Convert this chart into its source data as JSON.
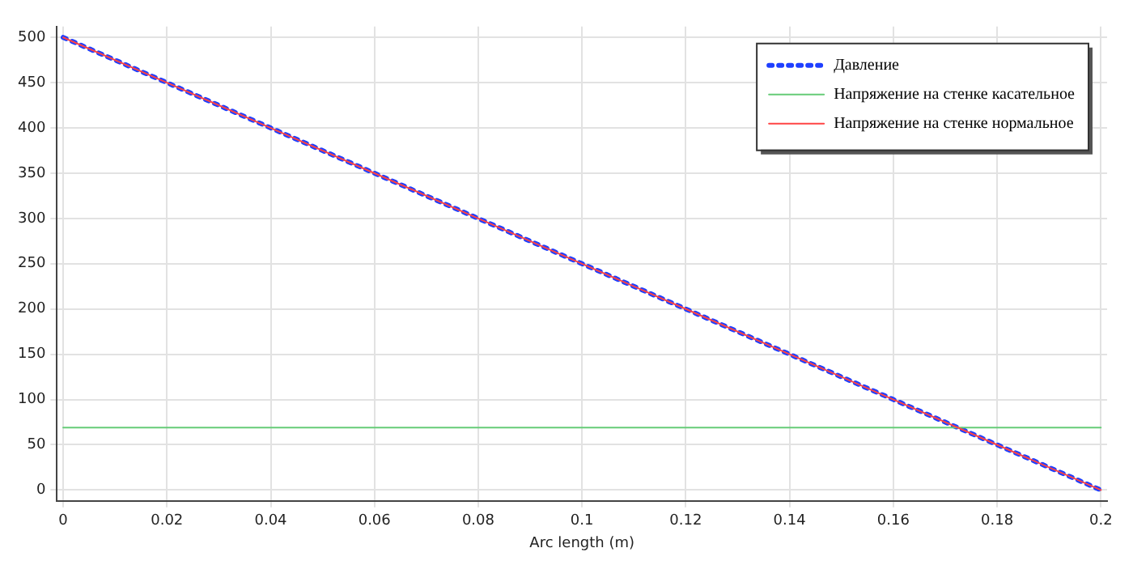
{
  "chart_data": {
    "type": "line",
    "xlabel": "Arc length (m)",
    "xlim": [
      -0.0012,
      0.2012
    ],
    "xticks": [
      0,
      0.02,
      0.04,
      0.06,
      0.08,
      0.1,
      0.12,
      0.14,
      0.16,
      0.18,
      0.2
    ],
    "ylim": [
      -12,
      512
    ],
    "yticks": [
      0,
      50,
      100,
      150,
      200,
      250,
      300,
      350,
      400,
      450,
      500
    ],
    "grid": true,
    "legend": "top right",
    "x": [
      0,
      0.02,
      0.04,
      0.06,
      0.08,
      0.1,
      0.12,
      0.14,
      0.16,
      0.18,
      0.2
    ],
    "series": [
      {
        "name": "Давление",
        "color": "#1f3fff",
        "values": [
          500,
          450,
          400,
          350,
          300,
          250,
          200,
          150,
          100,
          50,
          0
        ],
        "line_style": "dotted"
      },
      {
        "name": "Напряжение на стенке касательное",
        "color": "#66cc77",
        "values": [
          69,
          69,
          69,
          69,
          69,
          69,
          69,
          69,
          69,
          69,
          69
        ],
        "line_style": "solid"
      },
      {
        "name": "Напряжение на стенке нормальное",
        "color": "#ff4444",
        "values": [
          500,
          450,
          400,
          350,
          300,
          250,
          200,
          150,
          100,
          50,
          0
        ],
        "line_style": "solid"
      }
    ]
  }
}
